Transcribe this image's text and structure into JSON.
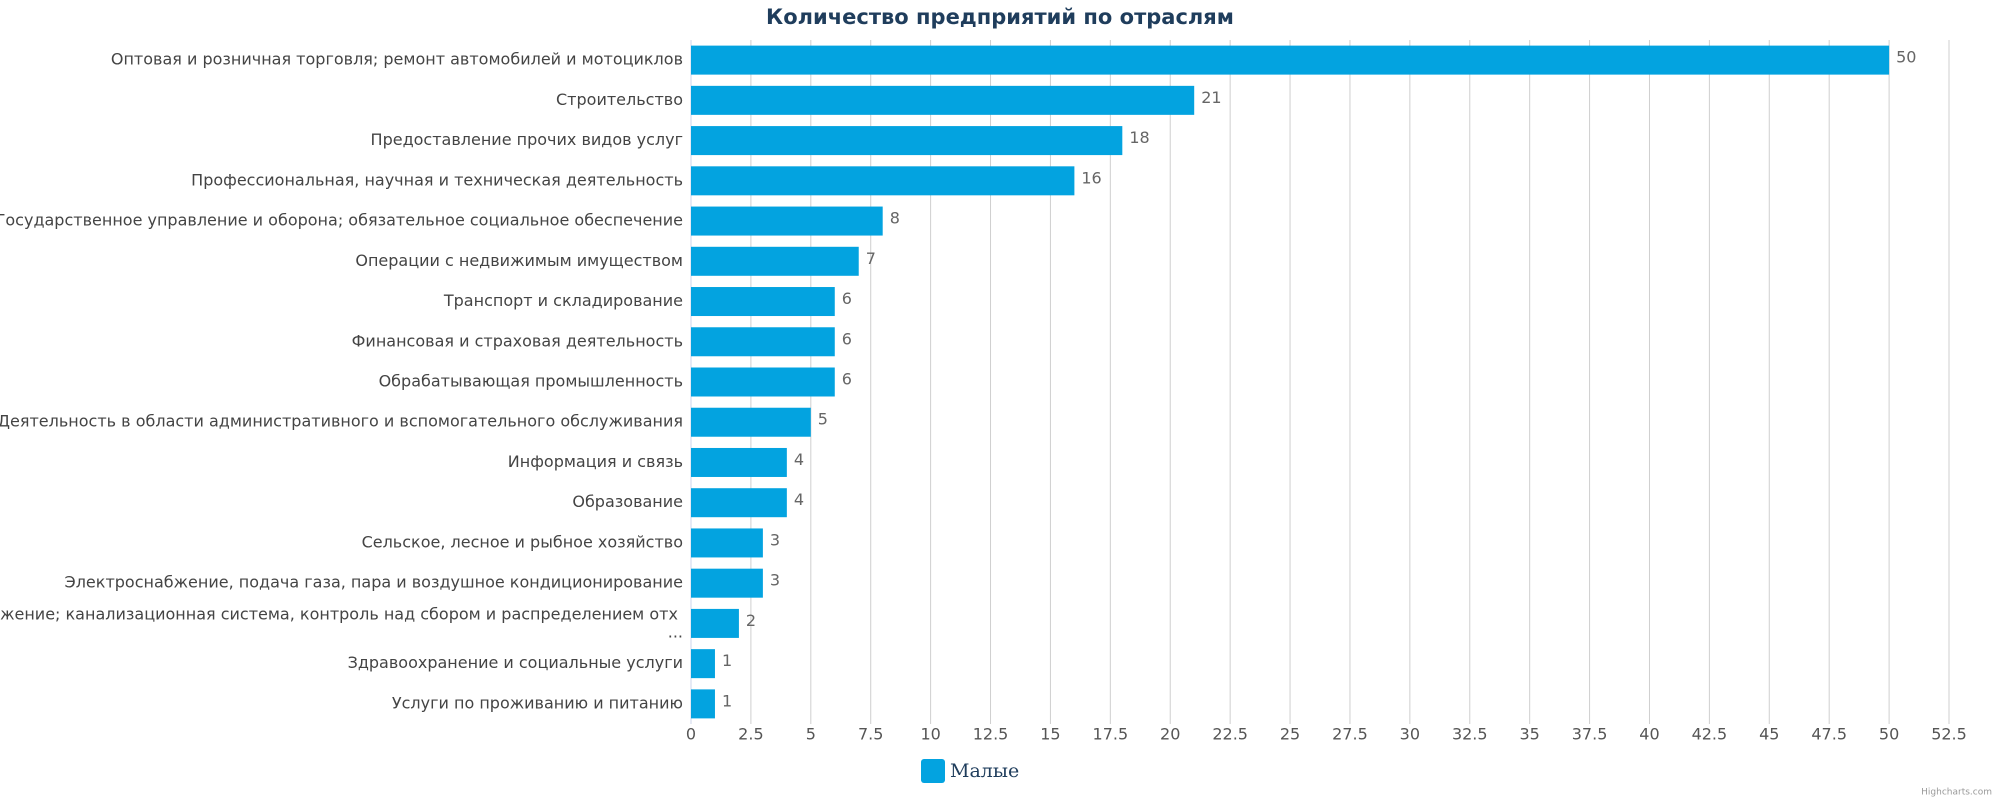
{
  "chart_data": {
    "type": "bar",
    "orientation": "horizontal",
    "title": "Количество предприятий по отраслям",
    "categories": [
      "Оптовая и розничная торговля; ремонт автомобилей и мотоциклов",
      "Строительство",
      "Предоставление прочих видов услуг",
      "Профессиональная, научная и техническая деятельность",
      "Государственное управление и оборона; обязательное социальное обеспечение",
      "Операции с недвижимым имуществом",
      "Транспорт и складирование",
      "Финансовая и страховая деятельность",
      "Обрабатывающая промышленность",
      "Деятельность в области административного и вспомогательного обслуживания",
      "Информация и связь",
      "Образование",
      "Сельское, лесное и рыбное хозяйство",
      "Электроснабжение, подача газа, пара и воздушное кондиционирование",
      "Водоснабжение; канализационная система, контроль над сбором и распределением отх ...",
      "Здравоохранение и социальные услуги",
      "Услуги по проживанию и питанию"
    ],
    "series": [
      {
        "name": "Малые",
        "color": "#03a3e0",
        "values": [
          50,
          21,
          18,
          16,
          8,
          7,
          6,
          6,
          6,
          5,
          4,
          4,
          3,
          3,
          2,
          1,
          1
        ]
      }
    ],
    "xlim": [
      0,
      52.5
    ],
    "xticks": [
      0,
      2.5,
      5,
      7.5,
      10,
      12.5,
      15,
      17.5,
      20,
      22.5,
      25,
      27.5,
      30,
      32.5,
      35,
      37.5,
      40,
      42.5,
      45,
      47.5,
      50,
      52.5
    ],
    "grid": true,
    "legend": "bottom",
    "credits": "Highcharts.com"
  }
}
